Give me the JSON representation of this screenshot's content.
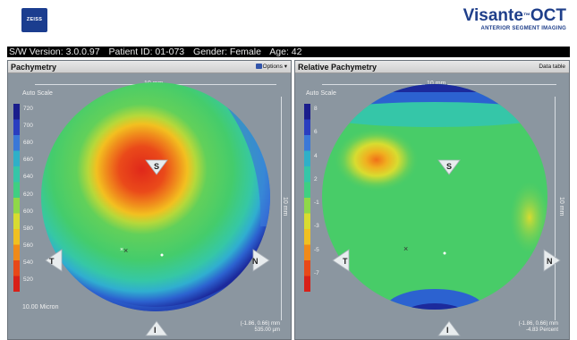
{
  "header": {
    "logo_text": "ZEISS",
    "brand_name": "Visante",
    "brand_tm": "™",
    "brand_suffix": "OCT",
    "brand_tagline": "ANTERIOR SEGMENT IMAGING"
  },
  "infobar": {
    "software": "S/W Version: 3.0.0.97",
    "patient": "Patient ID: 01-073",
    "gender": "Gender: Female",
    "age": "Age: 42"
  },
  "left_panel": {
    "title": "Pachymetry",
    "action": "Options",
    "auto_scale": "Auto Scale",
    "dimension_h": "10 mm",
    "dimension_v": "10 mm",
    "markers": {
      "superior": "S",
      "inferior": "I",
      "temporal": "T",
      "nasal": "N"
    },
    "scale_labels": [
      "720",
      "700",
      "680",
      "660",
      "640",
      "620",
      "600",
      "580",
      "560",
      "540",
      "520"
    ],
    "scale_colors": [
      "#1a1d8c",
      "#2a3ec0",
      "#3a78d8",
      "#2fb0c8",
      "#35c6a8",
      "#3fcf82",
      "#8fd848",
      "#d8dc30",
      "#f0c020",
      "#f08a18",
      "#e84818",
      "#d82018"
    ],
    "footer": "10.00 Micron",
    "readout_line1": "(-1.86, 0.66) mm",
    "readout_line2": "535.00 µm"
  },
  "right_panel": {
    "title": "Relative Pachymetry",
    "action": "Data table",
    "auto_scale": "Auto Scale",
    "dimension_h": "10 mm",
    "dimension_v": "10 mm",
    "markers": {
      "superior": "S",
      "inferior": "I",
      "temporal": "T",
      "nasal": "N"
    },
    "scale_labels": [
      "8",
      "6",
      "4",
      "2",
      "-1",
      "-3",
      "-5",
      "-7"
    ],
    "scale_colors": [
      "#1a1d8c",
      "#2a3ec0",
      "#3a78d8",
      "#2fb0c8",
      "#35c6a8",
      "#3fcf82",
      "#8fd848",
      "#d8dc30",
      "#f0c020",
      "#f08a18",
      "#e84818",
      "#d82018"
    ],
    "readout_line1": "(-1.86, 0.66) mm",
    "readout_line2": "-4.83 Percent"
  }
}
